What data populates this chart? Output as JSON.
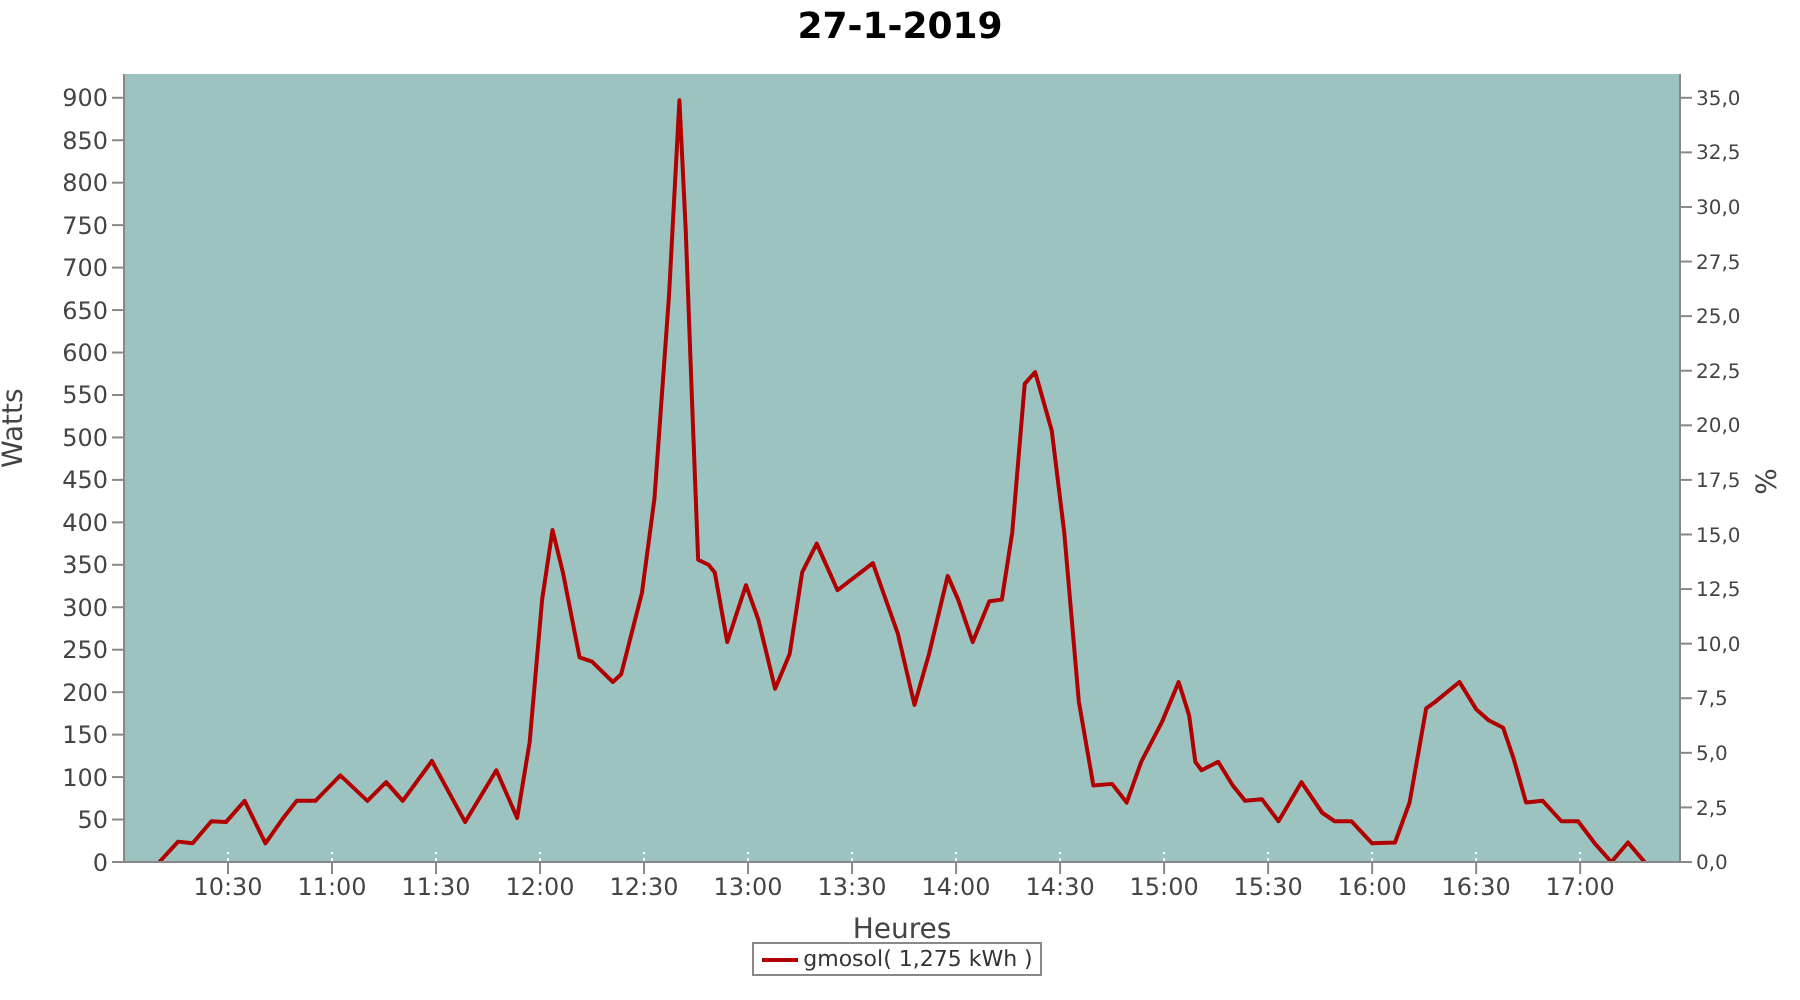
{
  "chart_data": {
    "type": "line",
    "title": "27-1-2019",
    "xlabel": "Heures",
    "ylabel": "Watts",
    "y2label": "%",
    "x": [
      10.17,
      10.26,
      10.33,
      10.42,
      10.49,
      10.58,
      10.68,
      10.76,
      10.83,
      10.92,
      11.04,
      11.17,
      11.26,
      11.34,
      11.48,
      11.64,
      11.79,
      11.89,
      11.95,
      12.01,
      12.06,
      12.11,
      12.19,
      12.25,
      12.35,
      12.39,
      12.49,
      12.55,
      12.62,
      12.67,
      12.7,
      12.73,
      12.76,
      12.81,
      12.84,
      12.9,
      12.99,
      13.05,
      13.13,
      13.2,
      13.26,
      13.33,
      13.43,
      13.6,
      13.72,
      13.8,
      13.87,
      13.96,
      14.01,
      14.08,
      14.16,
      14.22,
      14.27,
      14.33,
      14.38,
      14.46,
      14.52,
      14.59,
      14.66,
      14.75,
      14.82,
      14.89,
      14.99,
      15.07,
      15.12,
      15.15,
      15.18,
      15.26,
      15.33,
      15.39,
      15.47,
      15.55,
      15.66,
      15.76,
      15.82,
      15.9,
      16.0,
      16.11,
      16.18,
      16.26,
      16.3,
      16.42,
      16.5,
      16.56,
      16.63,
      16.68,
      16.74,
      16.82,
      16.91,
      16.99,
      17.07,
      17.15,
      17.23,
      17.31
    ],
    "series": [
      {
        "name": "gmosol( 1,275 kWh )",
        "color": "#b00000",
        "values": [
          0,
          24,
          22,
          48,
          47,
          72,
          22,
          50,
          72,
          72,
          102,
          72,
          94,
          72,
          119,
          47,
          108,
          52,
          141,
          309,
          391,
          341,
          241,
          236,
          212,
          221,
          317,
          428,
          667,
          897,
          746,
          547,
          356,
          350,
          341,
          259,
          326,
          285,
          204,
          245,
          341,
          375,
          320,
          352,
          269,
          185,
          245,
          337,
          309,
          259,
          307,
          309,
          388,
          563,
          577,
          508,
          388,
          189,
          90,
          92,
          70,
          118,
          165,
          212,
          173,
          118,
          108,
          118,
          90,
          72,
          74,
          48,
          94,
          58,
          48,
          48,
          22,
          23,
          70,
          181,
          188,
          212,
          180,
          167,
          158,
          122,
          70,
          72,
          48,
          48,
          22,
          0,
          23,
          0
        ]
      }
    ],
    "xlim": [
      10,
      17.48
    ],
    "xticks": [
      {
        "value": 10.5,
        "label": "10:30"
      },
      {
        "value": 11,
        "label": "11:00"
      },
      {
        "value": 11.5,
        "label": "11:30"
      },
      {
        "value": 12,
        "label": "12:00"
      },
      {
        "value": 12.5,
        "label": "12:30"
      },
      {
        "value": 13,
        "label": "13:00"
      },
      {
        "value": 13.5,
        "label": "13:30"
      },
      {
        "value": 14,
        "label": "14:00"
      },
      {
        "value": 14.5,
        "label": "14:30"
      },
      {
        "value": 15,
        "label": "15:00"
      },
      {
        "value": 15.5,
        "label": "15:30"
      },
      {
        "value": 16,
        "label": "16:00"
      },
      {
        "value": 16.5,
        "label": "16:30"
      },
      {
        "value": 17,
        "label": "17:00"
      }
    ],
    "ylim": [
      0,
      928
    ],
    "yticks": [
      0,
      50,
      100,
      150,
      200,
      250,
      300,
      350,
      400,
      450,
      500,
      550,
      600,
      650,
      700,
      750,
      800,
      850,
      900
    ],
    "y2lim": [
      0,
      36.09
    ],
    "y2ticks": [
      {
        "value": 0,
        "label": "0,0"
      },
      {
        "value": 2.5,
        "label": "2,5"
      },
      {
        "value": 5,
        "label": "5,0"
      },
      {
        "value": 7.5,
        "label": "7,5"
      },
      {
        "value": 10,
        "label": "10,0"
      },
      {
        "value": 12.5,
        "label": "12,5"
      },
      {
        "value": 15,
        "label": "15,0"
      },
      {
        "value": 17.5,
        "label": "17,5"
      },
      {
        "value": 20,
        "label": "20,0"
      },
      {
        "value": 22.5,
        "label": "22,5"
      },
      {
        "value": 25,
        "label": "25,0"
      },
      {
        "value": 27.5,
        "label": "27,5"
      },
      {
        "value": 30,
        "label": "30,0"
      },
      {
        "value": 32.5,
        "label": "32,5"
      },
      {
        "value": 35,
        "label": "35,0"
      }
    ],
    "grid": true,
    "legend": "bottom",
    "marker": "none",
    "line_style": "solid"
  }
}
